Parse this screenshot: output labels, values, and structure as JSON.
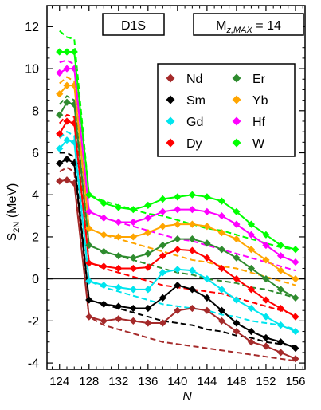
{
  "chart_data": {
    "type": "line",
    "box_labels": {
      "interaction": "D1S",
      "mz_prefix": "M",
      "mz_sub": "z,MAX",
      "mz_suffix": " = 14"
    },
    "xlabel": "N",
    "ylabel_main": "S",
    "ylabel_sub": "2N",
    "ylabel_unit": " (MeV)",
    "xlim": [
      122.3,
      157.3
    ],
    "ylim": [
      -4.3,
      13.0
    ],
    "x_ticks": [
      124,
      128,
      132,
      136,
      140,
      144,
      148,
      152,
      156
    ],
    "y_ticks": [
      -4,
      -2,
      0,
      2,
      4,
      6,
      8,
      10,
      12
    ],
    "grid": false,
    "legend_position": "top-right",
    "x": [
      124,
      125,
      126,
      128,
      130,
      132,
      134,
      136,
      138,
      140,
      142,
      144,
      146,
      148,
      150,
      152,
      154,
      156
    ],
    "series": [
      {
        "name": "Nd",
        "color": "#a52a2a",
        "values": [
          4.65,
          4.7,
          4.55,
          -1.8,
          -2.0,
          -1.9,
          -2.0,
          -2.1,
          -2.1,
          -1.5,
          -1.4,
          -1.5,
          -2.0,
          -2.5,
          -3.0,
          -3.2,
          -3.5,
          -3.8
        ],
        "dashed": [
          5.1,
          5.3,
          5.1,
          -1.8,
          -2.2,
          -2.4,
          -2.6,
          -2.8,
          -3.0,
          -3.1,
          -3.2,
          -3.3,
          -3.4,
          -3.5,
          -3.6,
          -3.7,
          -3.8,
          -3.9
        ]
      },
      {
        "name": "Sm",
        "color": "#000000",
        "values": [
          5.5,
          5.7,
          5.5,
          -1.0,
          -1.2,
          -1.3,
          -1.4,
          -1.4,
          -0.9,
          -0.3,
          -0.5,
          -0.9,
          -1.5,
          -2.1,
          -2.5,
          -2.8,
          -3.0,
          -3.3
        ],
        "dashed": [
          6.0,
          6.0,
          5.8,
          -1.0,
          -1.2,
          -1.4,
          -1.6,
          -1.8,
          -2.0,
          -2.1,
          -2.2,
          -2.4,
          -2.5,
          -2.7,
          -2.8,
          -3.0,
          -3.1,
          -3.2
        ]
      },
      {
        "name": "Gd",
        "color": "#00e5ee",
        "values": [
          6.2,
          6.6,
          6.5,
          -0.1,
          -0.3,
          -0.4,
          -0.5,
          -0.5,
          0.3,
          0.45,
          0.4,
          0.0,
          -0.5,
          -1.0,
          -1.4,
          -1.8,
          -2.2,
          -2.5
        ],
        "dashed": [
          6.7,
          7.0,
          6.8,
          -0.1,
          -0.4,
          -0.6,
          -0.8,
          -1.0,
          -1.2,
          -1.3,
          -1.4,
          -1.5,
          -1.7,
          -1.8,
          -2.0,
          -2.1,
          -2.2,
          -2.4
        ]
      },
      {
        "name": "Dy",
        "color": "#ff0000",
        "values": [
          6.9,
          7.5,
          7.4,
          0.75,
          0.6,
          0.5,
          0.5,
          0.55,
          1.1,
          1.4,
          1.35,
          1.0,
          0.5,
          0.0,
          -0.5,
          -1.0,
          -1.4,
          -1.8
        ],
        "dashed": [
          7.4,
          7.8,
          7.7,
          0.8,
          0.5,
          0.3,
          0.1,
          -0.1,
          -0.3,
          -0.4,
          -0.5,
          -0.6,
          -0.7,
          -0.9,
          -1.1,
          -1.3,
          -1.5,
          -1.7
        ]
      },
      {
        "name": "Er",
        "color": "#2e8b2e",
        "values": [
          7.8,
          8.4,
          8.3,
          1.6,
          1.3,
          1.1,
          1.0,
          1.2,
          1.6,
          1.9,
          1.9,
          1.7,
          1.4,
          1.0,
          0.5,
          0.0,
          -0.5,
          -0.9
        ],
        "dashed": [
          8.3,
          8.7,
          8.5,
          1.6,
          1.3,
          1.1,
          0.9,
          0.7,
          0.5,
          0.3,
          0.2,
          0.0,
          -0.1,
          -0.2,
          -0.4,
          -0.5,
          -0.7,
          -0.9
        ]
      },
      {
        "name": "Yb",
        "color": "#ffa500",
        "values": [
          8.8,
          9.2,
          9.2,
          2.4,
          2.1,
          2.0,
          2.0,
          2.2,
          2.5,
          2.6,
          2.6,
          2.5,
          2.2,
          1.9,
          1.4,
          0.9,
          0.4,
          0.0
        ],
        "dashed": [
          9.3,
          9.6,
          9.4,
          2.4,
          2.1,
          1.9,
          1.7,
          1.5,
          1.3,
          1.1,
          0.9,
          0.8,
          0.6,
          0.5,
          0.3,
          0.1,
          -0.1,
          -0.3
        ]
      },
      {
        "name": "Hf",
        "color": "#ff00ff",
        "values": [
          9.8,
          10.0,
          10.0,
          3.2,
          2.9,
          2.7,
          2.7,
          2.9,
          3.2,
          3.3,
          3.3,
          3.2,
          3.0,
          2.6,
          2.1,
          1.6,
          1.1,
          0.8
        ],
        "dashed": [
          10.3,
          10.4,
          10.2,
          3.2,
          2.9,
          2.7,
          2.5,
          2.3,
          2.1,
          1.9,
          1.8,
          1.6,
          1.4,
          1.2,
          1.0,
          0.8,
          0.6,
          0.4
        ]
      },
      {
        "name": "W",
        "color": "#00ff00",
        "values": [
          10.8,
          10.8,
          10.8,
          4.0,
          3.6,
          3.4,
          3.3,
          3.5,
          3.8,
          3.9,
          4.0,
          3.9,
          3.7,
          3.2,
          2.6,
          2.1,
          1.6,
          1.4
        ],
        "dashed": [
          11.8,
          11.5,
          11.4,
          4.0,
          3.7,
          3.5,
          3.3,
          3.1,
          3.0,
          2.8,
          2.6,
          2.4,
          2.3,
          2.1,
          1.9,
          1.7,
          1.5,
          1.4
        ]
      }
    ]
  }
}
